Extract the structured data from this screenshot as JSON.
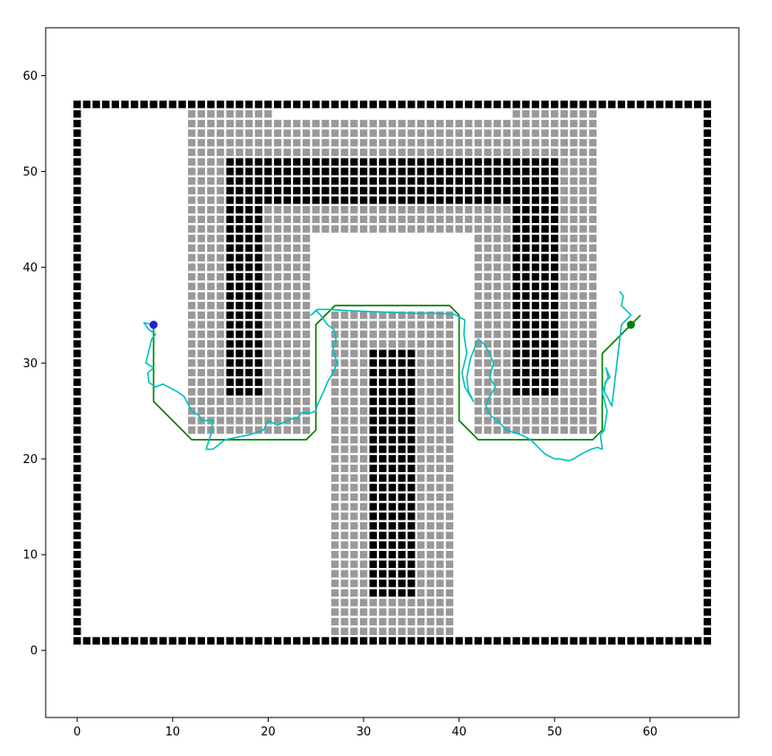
{
  "chart_data": {
    "type": "scatter",
    "title": "",
    "xlabel": "",
    "ylabel": "",
    "xlim": [
      -3.3,
      69.3
    ],
    "ylim": [
      -7.0,
      65.0
    ],
    "xticks": [
      0,
      10,
      20,
      30,
      40,
      50,
      60
    ],
    "yticks": [
      0,
      10,
      20,
      30,
      40,
      50,
      60
    ],
    "grid": false,
    "legend": "none",
    "layers": {
      "walls": {
        "color": "#000000",
        "rects": [
          {
            "x": [
              0,
              66
            ],
            "y": [
              1,
              1
            ]
          },
          {
            "x": [
              0,
              66
            ],
            "y": [
              57,
              57
            ]
          },
          {
            "x": [
              0,
              0
            ],
            "y": [
              1,
              57
            ]
          },
          {
            "x": [
              66,
              66
            ],
            "y": [
              1,
              57
            ]
          },
          {
            "x": [
              16,
              50
            ],
            "y": [
              47,
              51
            ]
          },
          {
            "x": [
              16,
              19
            ],
            "y": [
              27,
              47
            ]
          },
          {
            "x": [
              46,
              50
            ],
            "y": [
              27,
              47
            ]
          },
          {
            "x": [
              31,
              35
            ],
            "y": [
              6,
              31
            ]
          }
        ]
      },
      "inflated": {
        "color": "#999999",
        "rects": [
          {
            "x": [
              12,
              54
            ],
            "y": [
              43,
              56
            ]
          },
          {
            "x": [
              12,
              24
            ],
            "y": [
              23,
              43
            ]
          },
          {
            "x": [
              42,
              54
            ],
            "y": [
              23,
              43
            ]
          },
          {
            "x": [
              27,
              39
            ],
            "y": [
              2,
              35
            ]
          }
        ],
        "gaps": [
          {
            "x": [
              21,
              45
            ],
            "y": [
              56,
              56
            ]
          },
          {
            "x": [
              25,
              41
            ],
            "y": [
              43,
              43
            ]
          }
        ]
      }
    },
    "series": [
      {
        "style": "line",
        "color": "#008000",
        "x": [
          8,
          8,
          12,
          24,
          25,
          25,
          27,
          39,
          40,
          40,
          42,
          54,
          55,
          55,
          59
        ],
        "y": [
          34,
          26,
          22,
          22,
          23,
          34,
          36,
          36,
          35,
          24,
          22,
          22,
          23,
          31,
          35
        ]
      },
      {
        "style": "line",
        "color": "#00bfbf",
        "x": [
          8.0,
          7.0,
          7.5,
          8.2,
          7.8,
          7.2,
          8.0,
          7.4,
          7.5,
          8.2,
          9.0,
          10.5,
          11.2,
          12.0,
          12.8,
          13.0,
          14.2,
          14.0,
          13.5,
          14.2,
          15.5,
          16.5,
          18.0,
          19.5,
          20.0,
          21.0,
          22.0,
          22.5,
          23.0,
          23.5,
          24.5,
          25.0,
          25.1,
          25.8,
          26.2,
          26.8,
          27.2,
          26.8,
          27.1,
          26.9,
          26.2,
          25.5,
          25.0,
          24.5,
          25.2,
          26.5,
          28.0,
          30.0,
          32.5,
          35.0,
          37.5,
          39.5,
          40.6,
          40.5,
          40.8,
          40.3,
          40.6,
          41.2,
          41.5,
          41.0,
          40.8,
          41.2,
          41.6,
          42.0,
          42.6,
          43.2,
          43.6,
          43.2,
          43.8,
          43.2,
          42.8,
          43.3,
          44.0,
          45.0,
          46.5,
          47.5,
          48.5,
          49.0,
          50.0,
          50.5,
          51.0,
          51.5,
          52.0,
          52.8,
          53.8,
          54.5,
          55.0,
          54.8,
          55.2,
          55.5,
          55.0,
          55.6,
          55.4,
          55.5,
          55.8,
          55.3,
          55.2,
          55.5,
          56.0,
          57.0,
          58.0,
          57.0,
          57.2,
          56.8
        ],
        "y": [
          34.0,
          34.2,
          33.5,
          33.0,
          32.5,
          30.0,
          29.5,
          29.0,
          28.0,
          27.5,
          27.8,
          27.0,
          26.5,
          25.0,
          24.5,
          24.0,
          24.0,
          22.5,
          21.0,
          21.0,
          22.0,
          22.2,
          22.5,
          23.0,
          24.0,
          23.5,
          24.0,
          24.2,
          24.2,
          24.8,
          24.8,
          25.0,
          25.5,
          27.0,
          28.0,
          29.0,
          30.0,
          31.5,
          32.5,
          33.5,
          34.0,
          35.0,
          35.5,
          35.0,
          35.6,
          35.6,
          35.5,
          35.4,
          35.3,
          35.2,
          35.2,
          35.1,
          34.5,
          33.0,
          31.0,
          29.0,
          27.5,
          26.5,
          26.0,
          27.0,
          28.5,
          30.5,
          31.5,
          32.5,
          32.0,
          31.0,
          30.0,
          28.5,
          27.5,
          26.5,
          25.5,
          24.5,
          24.0,
          23.0,
          22.5,
          22.0,
          21.0,
          20.5,
          20.0,
          20.0,
          19.9,
          19.8,
          20.0,
          20.5,
          21.0,
          21.2,
          21.0,
          22.5,
          23.0,
          25.0,
          27.0,
          28.5,
          29.5,
          29.2,
          28.5,
          28.0,
          27.0,
          26.5,
          25.5,
          34.0,
          35.0,
          36.0,
          37.0,
          37.5
        ]
      },
      {
        "style": "marker",
        "color": "#2222cc",
        "label_marker": "start",
        "x": [
          8.0
        ],
        "y": [
          34.0
        ]
      },
      {
        "style": "marker",
        "color": "#008000",
        "label_marker": "goal",
        "x": [
          58.0
        ],
        "y": [
          34.0
        ]
      }
    ]
  }
}
